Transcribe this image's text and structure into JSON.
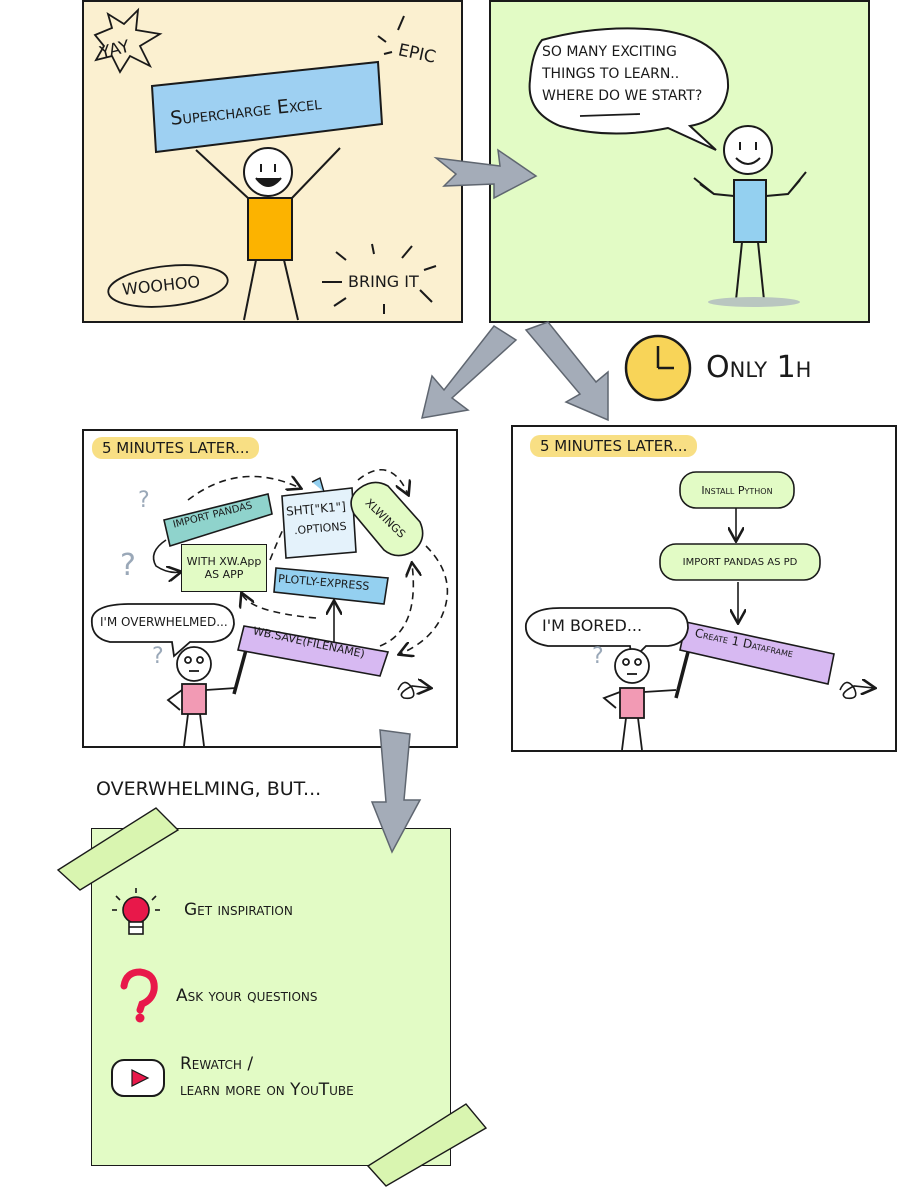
{
  "colors": {
    "panel_yellow": "#fbf0d0",
    "panel_green": "#e2fbc5",
    "banner_blue": "#9ed0f2",
    "shirt_orange": "#fcb300",
    "shirt_blue": "#94d0f0",
    "shirt_pink": "#f29ab4",
    "tag_teal": "#8fd3cc",
    "tag_purple": "#d7b9f2",
    "clock_yellow": "#f8d458",
    "highlight_yellow": "#f8df84",
    "arrow_grey": "#a4acb8",
    "icon_red": "#e8184a",
    "tape_green": "#d9f5b0"
  },
  "panel1": {
    "banner": "Supercharge Excel",
    "yay": "YAY",
    "epic": "EPIC",
    "woohoo": "WOOHOO",
    "bring_it": "BRING IT"
  },
  "panel2": {
    "speech_line1": "SO MANY EXCITING",
    "speech_line2": "THINGS TO LEARN..",
    "speech_line3": "WHERE DO WE START?"
  },
  "only_1h": "Only 1h",
  "panel3": {
    "header": "5 MINUTES LATER...",
    "tag_import_pandas": "IMPORT PANDAS",
    "note_sht_line1": "SHT[\"K1\"]",
    "note_sht_line2": ".OPTIONS",
    "tag_xlwings": "XLWINGS",
    "box_with_xw_line1": "WITH XW.App",
    "box_with_xw_line2": "AS APP",
    "tag_plotly": "PLOTLY-EXPRESS",
    "tag_wb_save": "WB.SAVE(FILENAME)",
    "speech": "I'M OVERWHELMED...",
    "question_marks": "?"
  },
  "panel4": {
    "header": "5 MINUTES LATER...",
    "step1": "Install Python",
    "step2": "IMPORT PANDAS AS PD",
    "step3": "Create 1 Dataframe",
    "speech": "I'M BORED...",
    "question_mark": "?"
  },
  "overwhelming_label": "OVERWHELMING, BUT...",
  "note": {
    "items": [
      {
        "icon": "lightbulb-icon",
        "label": "Get inspiration"
      },
      {
        "icon": "question-mark-icon",
        "label": "Ask your questions"
      },
      {
        "icon": "youtube-play-icon",
        "label_line1": "Rewatch /",
        "label_line2": "learn more on YouTube"
      }
    ]
  }
}
